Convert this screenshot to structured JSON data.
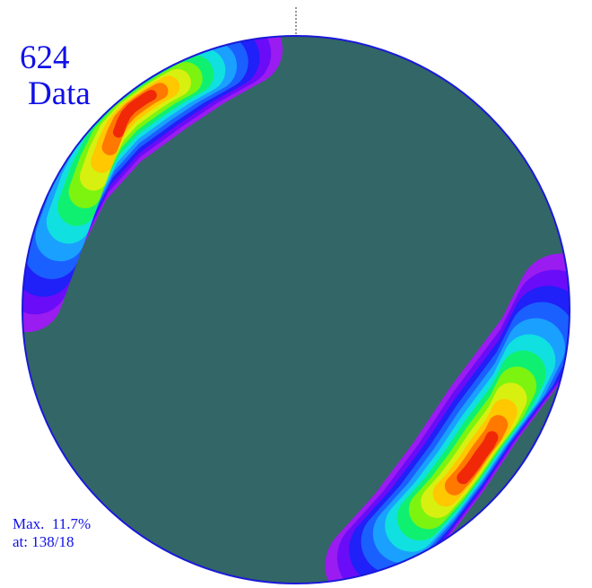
{
  "chart_data": {
    "type": "stereonet-density-contour",
    "count": "624",
    "count_unit": "Data",
    "max_label": "Max.",
    "max_value": "11.7%",
    "at_label": "at:",
    "max_location": "138/18",
    "max_plunge_trend": {
      "trend": 138,
      "plunge": 18
    },
    "north_tick": true,
    "background_color": "#336666",
    "outline_color": "#1a1ad8",
    "contour_colors": [
      "#9b1cf0",
      "#6a0cf7",
      "#2020f8",
      "#1a60ff",
      "#1aa0ff",
      "#10e0e0",
      "#10f070",
      "#7cf410",
      "#d8f010",
      "#ffc800",
      "#ff7800",
      "#f02808"
    ]
  }
}
